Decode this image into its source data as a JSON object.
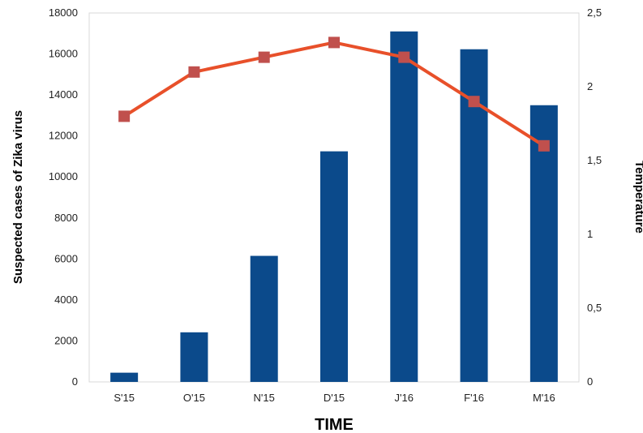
{
  "chart_data": {
    "type": "bar",
    "categories": [
      "S'15",
      "O'15",
      "N'15",
      "D'15",
      "J'16",
      "F'16",
      "M'16"
    ],
    "series": [
      {
        "type": "bar",
        "axis": "left",
        "color": "#0b4a8b",
        "values": [
          450,
          2420,
          6150,
          11250,
          17100,
          16230,
          13500
        ]
      },
      {
        "type": "line",
        "axis": "right",
        "color": "#e8502a",
        "marker_color": "#c0504d",
        "marker": "square",
        "values": [
          1.8,
          2.1,
          2.2,
          2.3,
          2.2,
          1.9,
          1.6
        ]
      }
    ],
    "xlabel": "TIME",
    "ylabel": "Suspected cases of Zika virus",
    "y2label": "Temperature",
    "ylim": [
      0,
      18000
    ],
    "y2lim": [
      0,
      2.5
    ],
    "yticks": [
      "0",
      "2000",
      "4000",
      "6000",
      "8000",
      "10000",
      "12000",
      "14000",
      "16000",
      "18000"
    ],
    "y2ticks": [
      "0",
      "0,5",
      "1",
      "1,5",
      "2",
      "2,5"
    ],
    "grid": false,
    "legend": "none"
  }
}
